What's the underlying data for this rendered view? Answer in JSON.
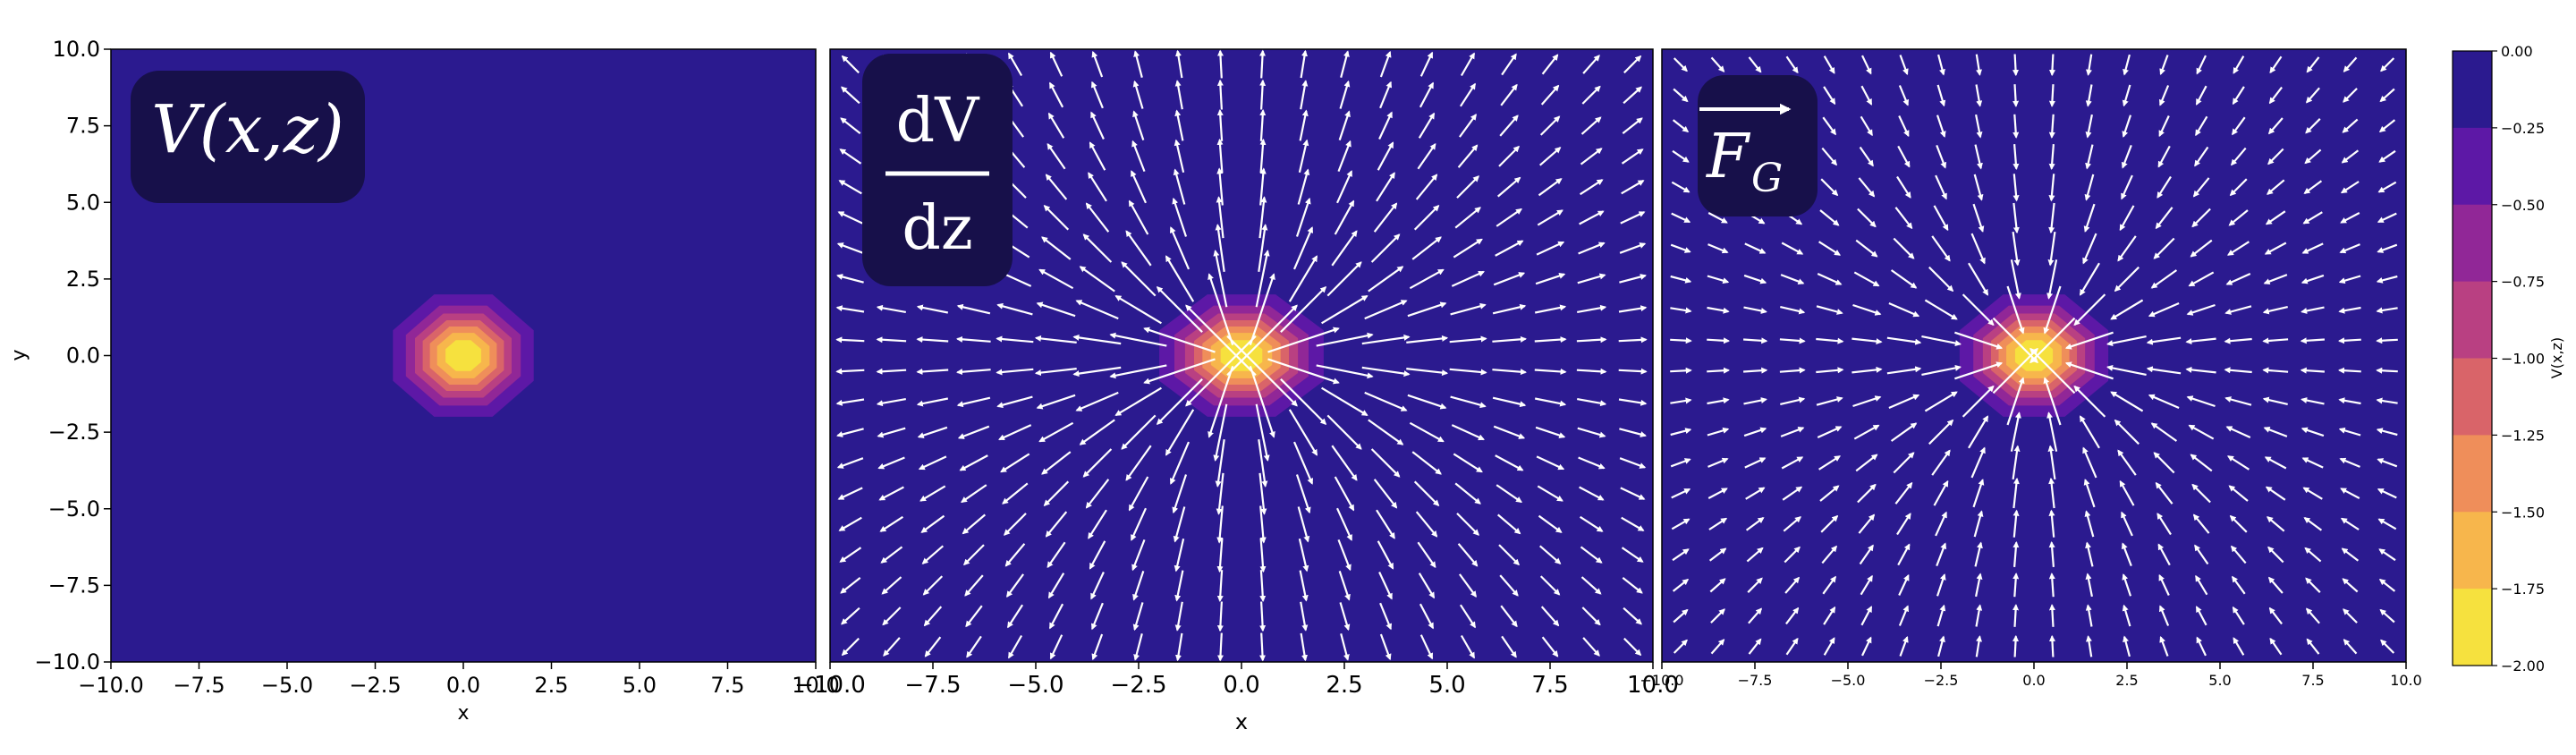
{
  "colors": {
    "background": "#2b1a8f",
    "badge": "#17104a",
    "arrow": "#ffffff",
    "levels": [
      "#f6e13e",
      "#f7b64c",
      "#ef8e5a",
      "#d96469",
      "#b94082",
      "#912797",
      "#5d18a6",
      "#2b1a8f"
    ]
  },
  "chart_data": [
    {
      "type": "heatmap",
      "panel": "potential",
      "badge_label": "V(x,z)",
      "xlabel": "x",
      "ylabel": "y",
      "xlim": [
        -10,
        10
      ],
      "ylim": [
        -10,
        10
      ],
      "x_ticks": [
        "−10.0",
        "−7.5",
        "−5.0",
        "−2.5",
        "0.0",
        "2.5",
        "5.0",
        "7.5",
        "10.0"
      ],
      "y_ticks": [
        "−10.0",
        "−7.5",
        "−5.0",
        "−2.5",
        "0.0",
        "2.5",
        "5.0",
        "7.5",
        "10.0"
      ],
      "field": "V = -2 * exp(-r^2 / 2)",
      "grid": false
    },
    {
      "type": "heatmap",
      "panel": "gradient",
      "badge_numerator": "dV",
      "badge_denominator": "dz",
      "xlabel": "x",
      "xlim": [
        -10,
        10
      ],
      "ylim": [
        -10,
        10
      ],
      "x_ticks": [
        "−10.0",
        "−7.5",
        "−5.0",
        "−2.5",
        "0.0",
        "2.5",
        "5.0",
        "7.5",
        "10.0"
      ],
      "overlay": "quiver",
      "quiver_grid": 20,
      "arrow_direction": "outward",
      "grid": false
    },
    {
      "type": "heatmap",
      "panel": "force",
      "badge_label": "F",
      "badge_subscript": "G",
      "xlabel": "x",
      "xlim": [
        -10,
        10
      ],
      "ylim": [
        -10,
        10
      ],
      "x_ticks": [
        "−10.0",
        "−7.5",
        "−5.0",
        "−2.5",
        "0.0",
        "2.5",
        "5.0",
        "7.5",
        "10.0"
      ],
      "overlay": "quiver",
      "quiver_grid": 20,
      "arrow_direction": "inward",
      "grid": false
    }
  ],
  "colorbar": {
    "label": "V(x,z)",
    "ticks": [
      "0.00",
      "−0.25",
      "−0.50",
      "−0.75",
      "−1.00",
      "−1.25",
      "−1.50",
      "−1.75",
      "−2.00"
    ],
    "range": [
      -2,
      0
    ]
  }
}
